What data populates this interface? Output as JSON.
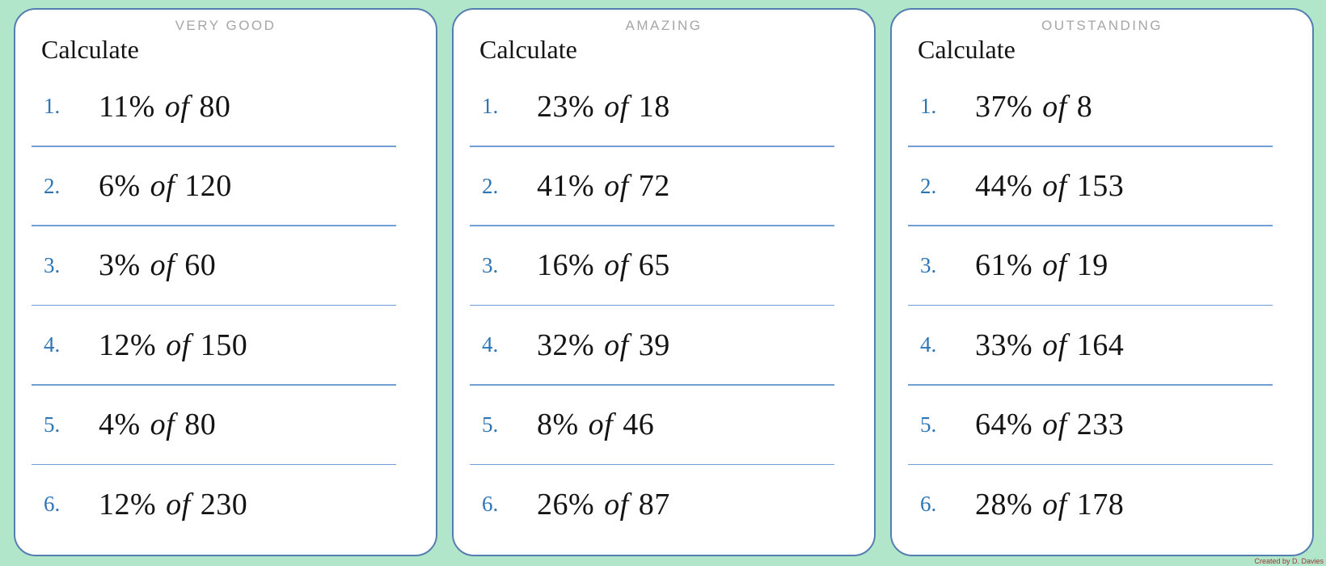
{
  "worksheet": {
    "credit": "Created by D. Davies"
  },
  "colors": {
    "background": "#b2e6ca",
    "card_border": "#557eb0",
    "separator": "#6f9fd4",
    "number_accent": "#2e75b6",
    "title_gray": "#a6a6a6",
    "credit_red": "#993634"
  },
  "cards": [
    {
      "title": "VERY GOOD",
      "heading": "Calculate",
      "problems": [
        {
          "number": "1.",
          "percent": "11%",
          "connector": "of",
          "amount": "80"
        },
        {
          "number": "2.",
          "percent": "6%",
          "connector": "of",
          "amount": "120"
        },
        {
          "number": "3.",
          "percent": "3%",
          "connector": "of",
          "amount": "60"
        },
        {
          "number": "4.",
          "percent": "12%",
          "connector": "of",
          "amount": "150"
        },
        {
          "number": "5.",
          "percent": "4%",
          "connector": "of",
          "amount": "80"
        },
        {
          "number": "6.",
          "percent": "12%",
          "connector": "of",
          "amount": "230"
        }
      ]
    },
    {
      "title": "AMAZING",
      "heading": "Calculate",
      "problems": [
        {
          "number": "1.",
          "percent": "23%",
          "connector": "of",
          "amount": "18"
        },
        {
          "number": "2.",
          "percent": "41%",
          "connector": "of",
          "amount": "72"
        },
        {
          "number": "3.",
          "percent": "16%",
          "connector": "of",
          "amount": "65"
        },
        {
          "number": "4.",
          "percent": "32%",
          "connector": "of",
          "amount": "39"
        },
        {
          "number": "5.",
          "percent": "8%",
          "connector": "of",
          "amount": "46"
        },
        {
          "number": "6.",
          "percent": "26%",
          "connector": "of",
          "amount": "87"
        }
      ]
    },
    {
      "title": "OUTSTANDING",
      "heading": "Calculate",
      "problems": [
        {
          "number": "1.",
          "percent": "37%",
          "connector": "of",
          "amount": "8"
        },
        {
          "number": "2.",
          "percent": "44%",
          "connector": "of",
          "amount": "153"
        },
        {
          "number": "3.",
          "percent": "61%",
          "connector": "of",
          "amount": "19"
        },
        {
          "number": "4.",
          "percent": "33%",
          "connector": "of",
          "amount": "164"
        },
        {
          "number": "5.",
          "percent": "64%",
          "connector": "of",
          "amount": "233"
        },
        {
          "number": "6.",
          "percent": "28%",
          "connector": "of",
          "amount": "178"
        }
      ]
    }
  ]
}
